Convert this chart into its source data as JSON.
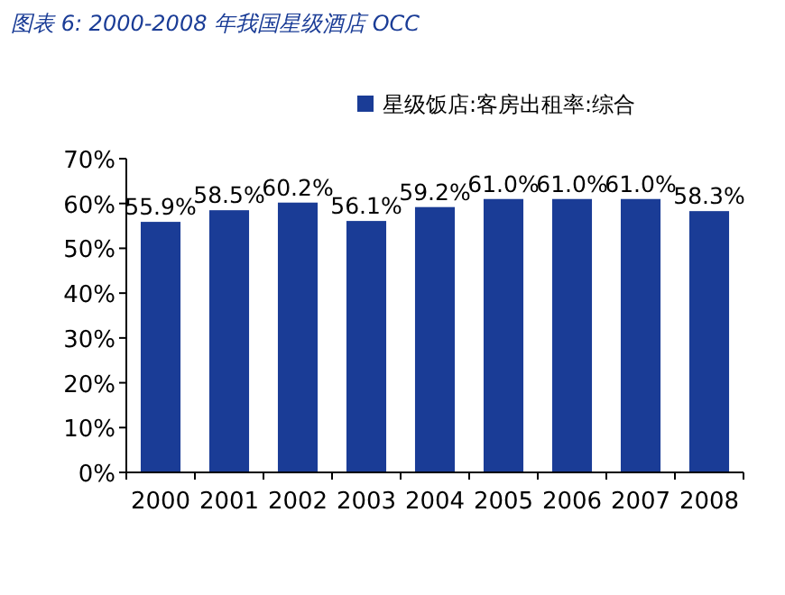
{
  "chart_data": {
    "type": "bar",
    "title": "图表 6:  2000-2008 年我国星级酒店 OCC",
    "categories": [
      "2000",
      "2001",
      "2002",
      "2003",
      "2004",
      "2005",
      "2006",
      "2007",
      "2008"
    ],
    "series": [
      {
        "name": "星级饭店:客房出租率:综合",
        "color": "#1a3c96",
        "values": [
          55.9,
          58.5,
          60.2,
          56.1,
          59.2,
          61.0,
          61.0,
          61.0,
          58.3
        ],
        "value_labels": [
          "55.9%",
          "58.5%",
          "60.2%",
          "56.1%",
          "59.2%",
          "61.0%",
          "61.0%",
          "61.0%",
          "58.3%"
        ]
      }
    ],
    "ylim": [
      0,
      70
    ],
    "yticks": [
      {
        "value": 0,
        "label": "0%"
      },
      {
        "value": 10,
        "label": "10%"
      },
      {
        "value": 20,
        "label": "20%"
      },
      {
        "value": 30,
        "label": "30%"
      },
      {
        "value": 40,
        "label": "40%"
      },
      {
        "value": 50,
        "label": "50%"
      },
      {
        "value": 60,
        "label": "60%"
      },
      {
        "value": 70,
        "label": "70%"
      }
    ],
    "legend": "top right"
  }
}
